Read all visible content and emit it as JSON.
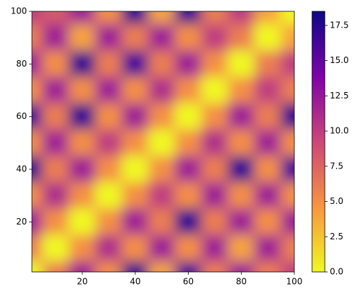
{
  "chart_data": {
    "type": "heatmap",
    "colormap": "plasma_r",
    "x": [
      0,
      10,
      20,
      30,
      40,
      50,
      60,
      70,
      80,
      90,
      100
    ],
    "y": [
      100,
      90,
      80,
      70,
      60,
      50,
      40,
      30,
      20,
      10,
      0
    ],
    "z": [
      [
        10,
        8,
        12,
        5,
        17,
        4,
        17,
        6,
        10,
        4,
        0
      ],
      [
        6,
        12,
        4,
        12,
        6,
        12,
        5,
        10,
        6,
        0,
        4
      ],
      [
        12,
        5,
        17,
        6,
        16,
        6,
        12,
        5,
        0,
        6,
        10
      ],
      [
        5,
        12,
        5,
        12,
        5,
        11,
        5,
        0,
        5,
        10,
        6
      ],
      [
        16,
        6,
        17,
        5,
        12,
        5,
        0,
        5,
        12,
        6,
        17
      ],
      [
        5,
        12,
        5,
        10,
        5,
        0,
        5,
        11,
        5,
        12,
        5
      ],
      [
        17,
        6,
        12,
        5,
        0,
        5,
        12,
        6,
        17,
        5,
        16
      ],
      [
        5,
        11,
        5,
        0,
        5,
        10,
        5,
        12,
        5,
        12,
        5
      ],
      [
        12,
        5,
        0,
        5,
        12,
        6,
        17,
        6,
        12,
        5,
        12
      ],
      [
        6,
        0,
        5,
        11,
        5,
        12,
        5,
        12,
        4,
        12,
        6
      ],
      [
        0,
        6,
        12,
        5,
        17,
        4,
        16,
        6,
        12,
        6,
        10
      ]
    ],
    "xlim": [
      1,
      100
    ],
    "ylim": [
      1,
      100
    ],
    "xticks": [
      20,
      40,
      60,
      80,
      100
    ],
    "yticks": [
      20,
      40,
      60,
      80,
      100
    ],
    "clim": [
      0,
      18.5
    ],
    "cticks": [
      {
        "value": 0,
        "label": "0.0"
      },
      2.5,
      {
        "value": 5,
        "label": "5.0"
      },
      7.5,
      {
        "value": 10,
        "label": "10.0"
      },
      12.5,
      {
        "value": 15,
        "label": "15.0"
      },
      17.5
    ]
  }
}
